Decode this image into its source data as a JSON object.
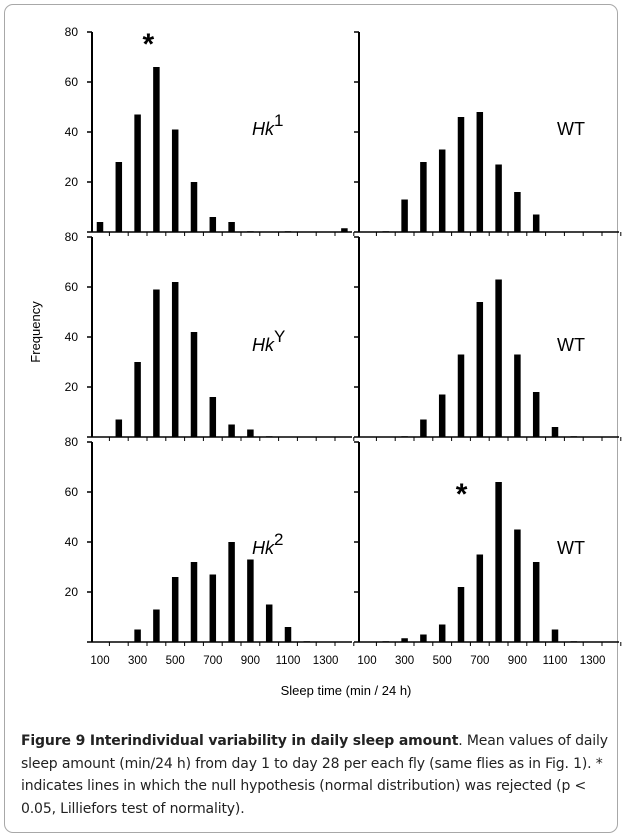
{
  "figure": {
    "ylabel": "Frequency",
    "xlabel": "Sleep time (min / 24 h)",
    "caption_title": "Figure 9 Interindividual variability in daily sleep amount",
    "caption_body": ". Mean values of daily sleep amount (min/24 h) from day 1 to day 28 per each fly (same flies as in Fig. 1). * indicates lines in which the null hypothesis (normal distribution) was rejected (p < 0.05, Lilliefors test of normality)."
  },
  "chart_data": [
    {
      "type": "bar",
      "panel": "row1-left",
      "label_base": "Hk",
      "label_sup": "1",
      "asterisk": true,
      "x": [
        100,
        200,
        300,
        400,
        500,
        600,
        700,
        800,
        900,
        1000,
        1100,
        1200,
        1300,
        1400
      ],
      "values": [
        4,
        28,
        47,
        66,
        41,
        20,
        6,
        4,
        0.3,
        0,
        0.3,
        0,
        0,
        1.5
      ],
      "ylim": [
        0,
        80
      ],
      "yticks": [
        20,
        40,
        60,
        80
      ],
      "xticklabels": [
        "100",
        "300",
        "500",
        "700",
        "900",
        "1100",
        "1300"
      ]
    },
    {
      "type": "bar",
      "panel": "row1-right",
      "label_base": "WT",
      "label_sup": "",
      "asterisk": false,
      "x": [
        100,
        200,
        300,
        400,
        500,
        600,
        700,
        800,
        900,
        1000,
        1100,
        1200,
        1300,
        1400
      ],
      "values": [
        0,
        0.3,
        13,
        28,
        33,
        46,
        48,
        27,
        16,
        7,
        0,
        0,
        0,
        0
      ],
      "ylim": [
        0,
        80
      ],
      "xticklabels": [
        "100",
        "300",
        "500",
        "700",
        "900",
        "1100",
        "1300"
      ]
    },
    {
      "type": "bar",
      "panel": "row2-left",
      "label_base": "Hk",
      "label_sup": "Y",
      "asterisk": false,
      "x": [
        100,
        200,
        300,
        400,
        500,
        600,
        700,
        800,
        900,
        1000,
        1100,
        1200,
        1300,
        1400
      ],
      "values": [
        0,
        7,
        30,
        59,
        62,
        42,
        16,
        5,
        3,
        0.3,
        0,
        0,
        0,
        0
      ],
      "ylim": [
        0,
        80
      ],
      "yticks": [
        20,
        40,
        60,
        80
      ],
      "xticklabels": [
        "100",
        "300",
        "500",
        "700",
        "900",
        "1100",
        "1300"
      ]
    },
    {
      "type": "bar",
      "panel": "row2-right",
      "label_base": "WT",
      "label_sup": "",
      "asterisk": false,
      "x": [
        100,
        200,
        300,
        400,
        500,
        600,
        700,
        800,
        900,
        1000,
        1100,
        1200,
        1300,
        1400
      ],
      "values": [
        0,
        0,
        0.3,
        7,
        17,
        33,
        54,
        63,
        33,
        18,
        4,
        0.3,
        0,
        0
      ],
      "ylim": [
        0,
        80
      ],
      "xticklabels": [
        "100",
        "300",
        "500",
        "700",
        "900",
        "1100",
        "1300"
      ]
    },
    {
      "type": "bar",
      "panel": "row3-left",
      "label_base": "Hk",
      "label_sup": "2",
      "asterisk": false,
      "x": [
        100,
        200,
        300,
        400,
        500,
        600,
        700,
        800,
        900,
        1000,
        1100,
        1200,
        1300,
        1400
      ],
      "values": [
        0,
        0,
        5,
        13,
        26,
        32,
        27,
        40,
        33,
        15,
        6,
        0.3,
        0,
        0
      ],
      "ylim": [
        0,
        80
      ],
      "yticks": [
        20,
        40,
        60,
        80
      ],
      "xticklabels": [
        "100",
        "300",
        "500",
        "700",
        "900",
        "1100",
        "1300"
      ]
    },
    {
      "type": "bar",
      "panel": "row3-right",
      "label_base": "WT",
      "label_sup": "",
      "asterisk": true,
      "x": [
        100,
        200,
        300,
        400,
        500,
        600,
        700,
        800,
        900,
        1000,
        1100,
        1200,
        1300,
        1400
      ],
      "values": [
        0,
        0.3,
        1.5,
        3,
        7,
        22,
        35,
        64,
        45,
        32,
        5,
        0.3,
        0,
        0
      ],
      "ylim": [
        0,
        80
      ],
      "xticklabels": [
        "100",
        "300",
        "500",
        "700",
        "900",
        "1100",
        "1300"
      ]
    }
  ]
}
